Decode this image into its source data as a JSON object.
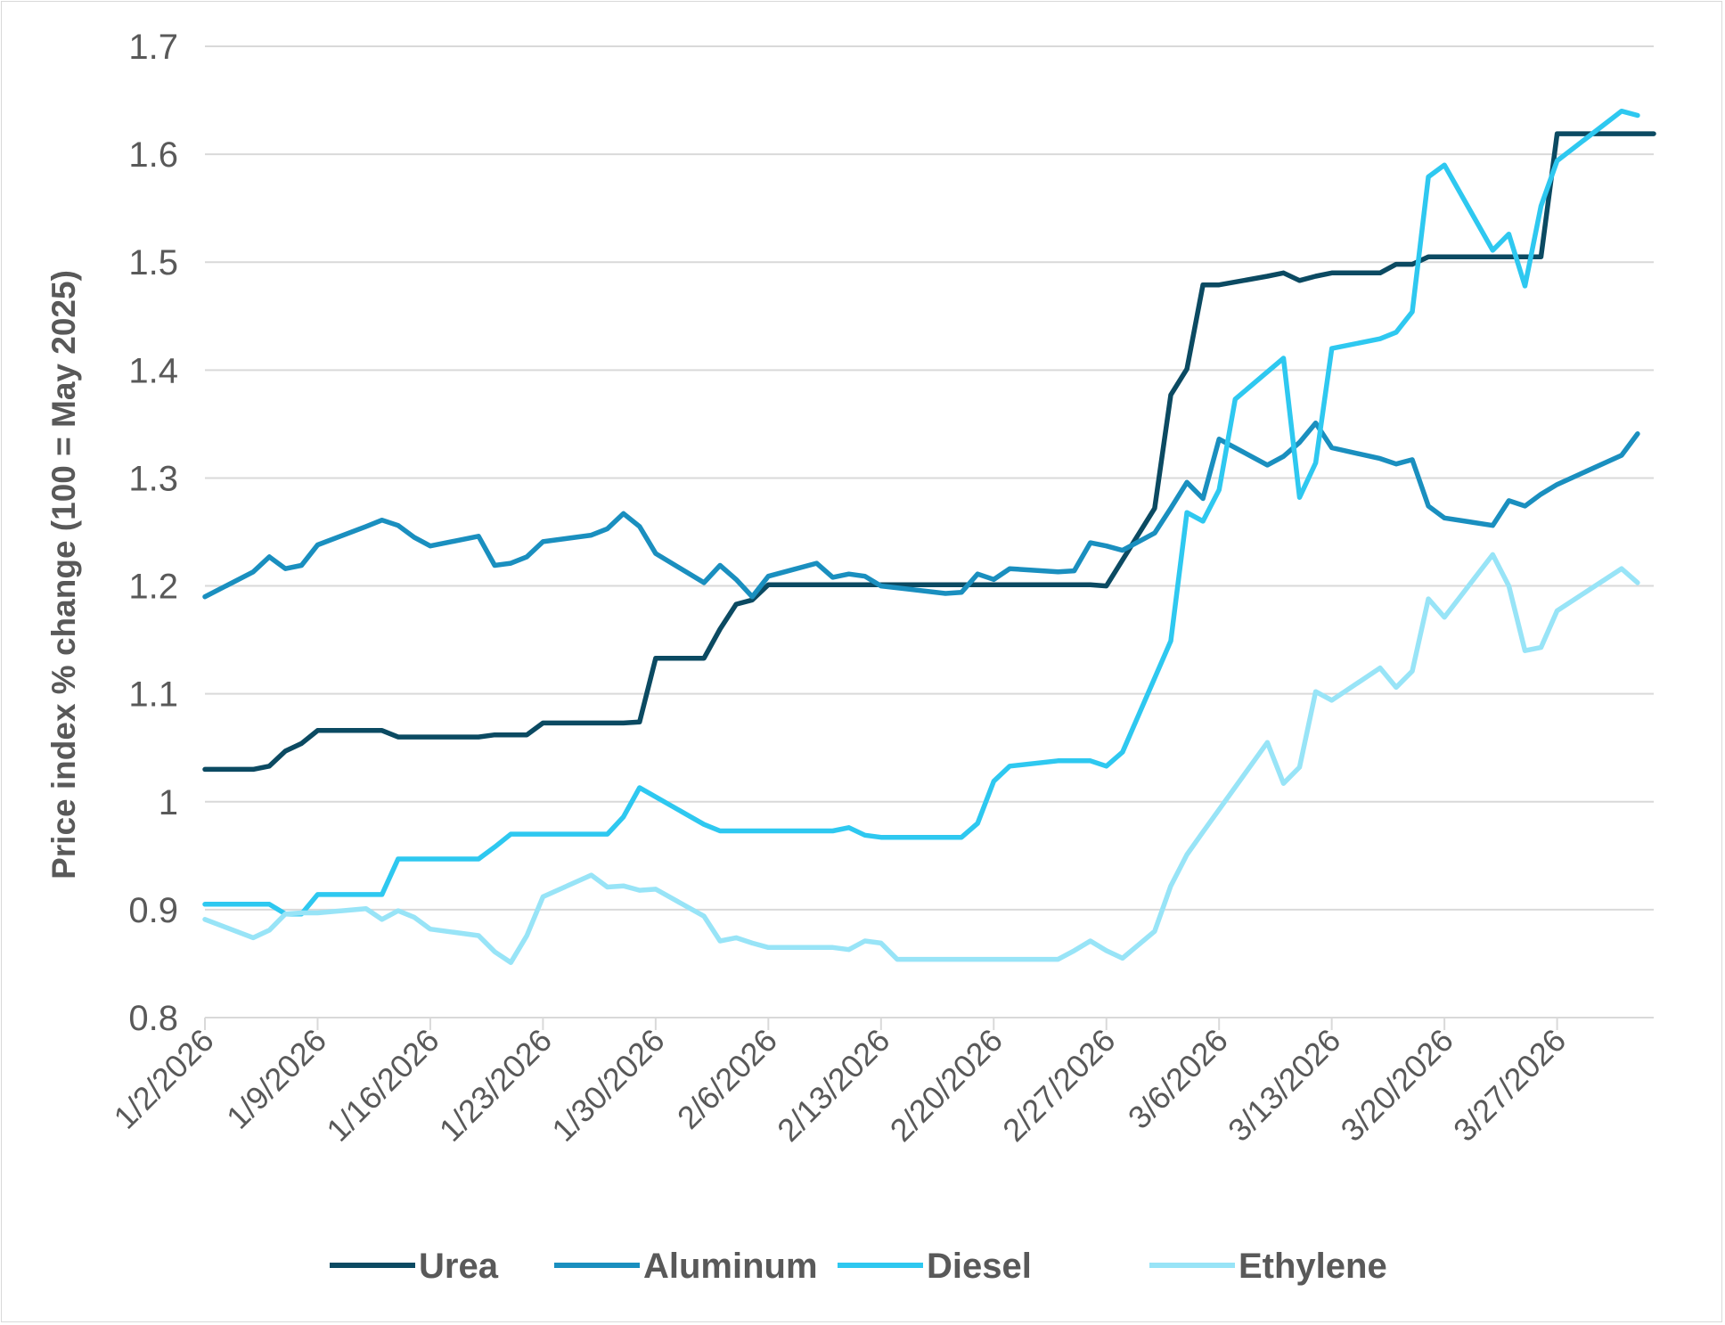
{
  "chart_data": {
    "type": "line",
    "title": "",
    "xlabel": "",
    "ylabel": "Price index % change (100 = May 2025)",
    "ylim": [
      0.8,
      1.7
    ],
    "yticks": [
      "0.8",
      "0.9",
      "1",
      "1.1",
      "1.2",
      "1.3",
      "1.4",
      "1.5",
      "1.6",
      "1.7"
    ],
    "xlim": [
      "1/2/2026",
      "4/2/2026"
    ],
    "xticks": [
      "1/2/2026",
      "1/9/2026",
      "1/16/2026",
      "1/23/2026",
      "1/30/2026",
      "2/6/2026",
      "2/13/2026",
      "2/20/2026",
      "2/27/2026",
      "3/6/2026",
      "3/13/2026",
      "3/20/2026",
      "3/27/2026"
    ],
    "grid": "horizontal",
    "legend_position": "bottom",
    "series": [
      {
        "name": "Urea",
        "color": "#0b4a62",
        "points": [
          [
            "1/2/2026",
            1.03
          ],
          [
            "1/5/2026",
            1.03
          ],
          [
            "1/6/2026",
            1.033
          ],
          [
            "1/7/2026",
            1.047
          ],
          [
            "1/8/2026",
            1.054
          ],
          [
            "1/9/2026",
            1.066
          ],
          [
            "1/12/2026",
            1.066
          ],
          [
            "1/13/2026",
            1.066
          ],
          [
            "1/14/2026",
            1.06
          ],
          [
            "1/19/2026",
            1.06
          ],
          [
            "1/20/2026",
            1.062
          ],
          [
            "1/21/2026",
            1.062
          ],
          [
            "1/22/2026",
            1.062
          ],
          [
            "1/23/2026",
            1.073
          ],
          [
            "1/28/2026",
            1.073
          ],
          [
            "1/29/2026",
            1.074
          ],
          [
            "1/30/2026",
            1.133
          ],
          [
            "2/2/2026",
            1.133
          ],
          [
            "2/3/2026",
            1.16
          ],
          [
            "2/4/2026",
            1.183
          ],
          [
            "2/5/2026",
            1.187
          ],
          [
            "2/6/2026",
            1.201
          ],
          [
            "2/26/2026",
            1.201
          ],
          [
            "2/27/2026",
            1.2
          ],
          [
            "3/2/2026",
            1.272
          ],
          [
            "3/3/2026",
            1.377
          ],
          [
            "3/4/2026",
            1.401
          ],
          [
            "3/5/2026",
            1.479
          ],
          [
            "3/6/2026",
            1.479
          ],
          [
            "3/9/2026",
            1.487
          ],
          [
            "3/10/2026",
            1.49
          ],
          [
            "3/11/2026",
            1.483
          ],
          [
            "3/12/2026",
            1.487
          ],
          [
            "3/13/2026",
            1.49
          ],
          [
            "3/16/2026",
            1.49
          ],
          [
            "3/17/2026",
            1.498
          ],
          [
            "3/18/2026",
            1.498
          ],
          [
            "3/19/2026",
            1.505
          ],
          [
            "3/26/2026",
            1.505
          ],
          [
            "3/27/2026",
            1.619
          ],
          [
            "4/2/2026",
            1.619
          ]
        ]
      },
      {
        "name": "Aluminum",
        "color": "#1a8fbf",
        "points": [
          [
            "1/2/2026",
            1.19
          ],
          [
            "1/5/2026",
            1.213
          ],
          [
            "1/6/2026",
            1.227
          ],
          [
            "1/7/2026",
            1.216
          ],
          [
            "1/8/2026",
            1.219
          ],
          [
            "1/9/2026",
            1.238
          ],
          [
            "1/12/2026",
            1.255
          ],
          [
            "1/13/2026",
            1.261
          ],
          [
            "1/14/2026",
            1.256
          ],
          [
            "1/15/2026",
            1.245
          ],
          [
            "1/16/2026",
            1.237
          ],
          [
            "1/19/2026",
            1.246
          ],
          [
            "1/20/2026",
            1.219
          ],
          [
            "1/21/2026",
            1.221
          ],
          [
            "1/22/2026",
            1.227
          ],
          [
            "1/23/2026",
            1.241
          ],
          [
            "1/26/2026",
            1.247
          ],
          [
            "1/27/2026",
            1.253
          ],
          [
            "1/28/2026",
            1.267
          ],
          [
            "1/29/2026",
            1.255
          ],
          [
            "1/30/2026",
            1.23
          ],
          [
            "2/2/2026",
            1.203
          ],
          [
            "2/3/2026",
            1.219
          ],
          [
            "2/4/2026",
            1.206
          ],
          [
            "2/5/2026",
            1.19
          ],
          [
            "2/6/2026",
            1.209
          ],
          [
            "2/9/2026",
            1.221
          ],
          [
            "2/10/2026",
            1.208
          ],
          [
            "2/11/2026",
            1.211
          ],
          [
            "2/12/2026",
            1.209
          ],
          [
            "2/13/2026",
            1.2
          ],
          [
            "2/17/2026",
            1.193
          ],
          [
            "2/18/2026",
            1.194
          ],
          [
            "2/19/2026",
            1.211
          ],
          [
            "2/20/2026",
            1.206
          ],
          [
            "2/21/2026",
            1.216
          ],
          [
            "2/24/2026",
            1.213
          ],
          [
            "2/25/2026",
            1.214
          ],
          [
            "2/26/2026",
            1.24
          ],
          [
            "2/27/2026",
            1.237
          ],
          [
            "2/28/2026",
            1.233
          ],
          [
            "3/2/2026",
            1.249
          ],
          [
            "3/3/2026",
            1.272
          ],
          [
            "3/4/2026",
            1.296
          ],
          [
            "3/5/2026",
            1.281
          ],
          [
            "3/6/2026",
            1.336
          ],
          [
            "3/9/2026",
            1.312
          ],
          [
            "3/10/2026",
            1.32
          ],
          [
            "3/11/2026",
            1.333
          ],
          [
            "3/12/2026",
            1.351
          ],
          [
            "3/13/2026",
            1.328
          ],
          [
            "3/16/2026",
            1.318
          ],
          [
            "3/17/2026",
            1.313
          ],
          [
            "3/18/2026",
            1.317
          ],
          [
            "3/19/2026",
            1.274
          ],
          [
            "3/20/2026",
            1.263
          ],
          [
            "3/23/2026",
            1.256
          ],
          [
            "3/24/2026",
            1.279
          ],
          [
            "3/25/2026",
            1.274
          ],
          [
            "3/26/2026",
            1.285
          ],
          [
            "3/27/2026",
            1.294
          ],
          [
            "3/31/2026",
            1.321
          ],
          [
            "4/1/2026",
            1.341
          ]
        ]
      },
      {
        "name": "Diesel",
        "color": "#2ec8f0",
        "points": [
          [
            "1/2/2026",
            0.905
          ],
          [
            "1/6/2026",
            0.905
          ],
          [
            "1/7/2026",
            0.896
          ],
          [
            "1/8/2026",
            0.896
          ],
          [
            "1/9/2026",
            0.914
          ],
          [
            "1/13/2026",
            0.914
          ],
          [
            "1/14/2026",
            0.947
          ],
          [
            "1/19/2026",
            0.947
          ],
          [
            "1/20/2026",
            0.958
          ],
          [
            "1/21/2026",
            0.97
          ],
          [
            "1/27/2026",
            0.97
          ],
          [
            "1/28/2026",
            0.986
          ],
          [
            "1/29/2026",
            1.013
          ],
          [
            "2/2/2026",
            0.979
          ],
          [
            "2/3/2026",
            0.973
          ],
          [
            "2/10/2026",
            0.973
          ],
          [
            "2/11/2026",
            0.976
          ],
          [
            "2/12/2026",
            0.969
          ],
          [
            "2/13/2026",
            0.967
          ],
          [
            "2/18/2026",
            0.967
          ],
          [
            "2/19/2026",
            0.98
          ],
          [
            "2/20/2026",
            1.019
          ],
          [
            "2/21/2026",
            1.033
          ],
          [
            "2/24/2026",
            1.038
          ],
          [
            "2/26/2026",
            1.038
          ],
          [
            "2/27/2026",
            1.033
          ],
          [
            "2/28/2026",
            1.046
          ],
          [
            "3/3/2026",
            1.149
          ],
          [
            "3/4/2026",
            1.268
          ],
          [
            "3/5/2026",
            1.26
          ],
          [
            "3/6/2026",
            1.289
          ],
          [
            "3/7/2026",
            1.373
          ],
          [
            "3/10/2026",
            1.411
          ],
          [
            "3/11/2026",
            1.282
          ],
          [
            "3/12/2026",
            1.314
          ],
          [
            "3/13/2026",
            1.42
          ],
          [
            "3/16/2026",
            1.429
          ],
          [
            "3/17/2026",
            1.435
          ],
          [
            "3/18/2026",
            1.454
          ],
          [
            "3/19/2026",
            1.579
          ],
          [
            "3/20/2026",
            1.59
          ],
          [
            "3/23/2026",
            1.511
          ],
          [
            "3/24/2026",
            1.526
          ],
          [
            "3/25/2026",
            1.478
          ],
          [
            "3/26/2026",
            1.552
          ],
          [
            "3/27/2026",
            1.594
          ],
          [
            "3/31/2026",
            1.64
          ],
          [
            "4/1/2026",
            1.636
          ]
        ]
      },
      {
        "name": "Ethylene",
        "color": "#98e4f7",
        "points": [
          [
            "1/2/2026",
            0.891
          ],
          [
            "1/5/2026",
            0.874
          ],
          [
            "1/6/2026",
            0.881
          ],
          [
            "1/7/2026",
            0.896
          ],
          [
            "1/8/2026",
            0.897
          ],
          [
            "1/9/2026",
            0.897
          ],
          [
            "1/12/2026",
            0.901
          ],
          [
            "1/13/2026",
            0.891
          ],
          [
            "1/14/2026",
            0.899
          ],
          [
            "1/15/2026",
            0.893
          ],
          [
            "1/16/2026",
            0.882
          ],
          [
            "1/19/2026",
            0.876
          ],
          [
            "1/20/2026",
            0.861
          ],
          [
            "1/21/2026",
            0.851
          ],
          [
            "1/22/2026",
            0.876
          ],
          [
            "1/23/2026",
            0.912
          ],
          [
            "1/26/2026",
            0.932
          ],
          [
            "1/27/2026",
            0.921
          ],
          [
            "1/28/2026",
            0.922
          ],
          [
            "1/29/2026",
            0.918
          ],
          [
            "1/30/2026",
            0.919
          ],
          [
            "2/2/2026",
            0.894
          ],
          [
            "2/3/2026",
            0.871
          ],
          [
            "2/4/2026",
            0.874
          ],
          [
            "2/5/2026",
            0.869
          ],
          [
            "2/6/2026",
            0.865
          ],
          [
            "2/10/2026",
            0.865
          ],
          [
            "2/11/2026",
            0.863
          ],
          [
            "2/12/2026",
            0.871
          ],
          [
            "2/13/2026",
            0.869
          ],
          [
            "2/14/2026",
            0.854
          ],
          [
            "2/24/2026",
            0.854
          ],
          [
            "2/25/2026",
            0.862
          ],
          [
            "2/26/2026",
            0.871
          ],
          [
            "2/27/2026",
            0.862
          ],
          [
            "2/28/2026",
            0.855
          ],
          [
            "3/2/2026",
            0.88
          ],
          [
            "3/3/2026",
            0.922
          ],
          [
            "3/4/2026",
            0.951
          ],
          [
            "3/5/2026",
            0.972
          ],
          [
            "3/9/2026",
            1.055
          ],
          [
            "3/10/2026",
            1.017
          ],
          [
            "3/11/2026",
            1.032
          ],
          [
            "3/12/2026",
            1.102
          ],
          [
            "3/13/2026",
            1.094
          ],
          [
            "3/16/2026",
            1.124
          ],
          [
            "3/17/2026",
            1.106
          ],
          [
            "3/18/2026",
            1.121
          ],
          [
            "3/19/2026",
            1.188
          ],
          [
            "3/20/2026",
            1.171
          ],
          [
            "3/23/2026",
            1.229
          ],
          [
            "3/24/2026",
            1.2
          ],
          [
            "3/25/2026",
            1.14
          ],
          [
            "3/26/2026",
            1.143
          ],
          [
            "3/27/2026",
            1.177
          ],
          [
            "3/31/2026",
            1.216
          ],
          [
            "4/1/2026",
            1.203
          ]
        ]
      }
    ]
  }
}
